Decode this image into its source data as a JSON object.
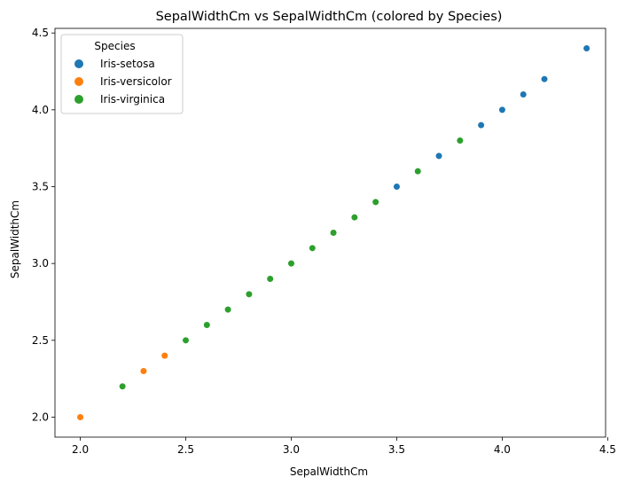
{
  "chart_data": {
    "type": "scatter",
    "title": "SepalWidthCm vs SepalWidthCm (colored by Species)",
    "xlabel": "SepalWidthCm",
    "ylabel": "SepalWidthCm",
    "xlim": [
      1.88,
      4.49
    ],
    "ylim": [
      1.87,
      4.53
    ],
    "xticks": [
      "2.0",
      "2.5",
      "3.0",
      "3.5",
      "4.0",
      "4.5"
    ],
    "yticks": [
      "2.0",
      "2.5",
      "3.0",
      "3.5",
      "4.0",
      "4.5"
    ],
    "grid": false,
    "legend": {
      "title": "Species",
      "placement": "top-left"
    },
    "series": [
      {
        "name": "Iris-setosa",
        "color": "#1f77b4",
        "x": [
          3.5,
          3.7,
          3.9,
          4.0,
          4.1,
          4.2,
          4.4
        ],
        "y": [
          3.5,
          3.7,
          3.9,
          4.0,
          4.1,
          4.2,
          4.4
        ]
      },
      {
        "name": "Iris-versicolor",
        "color": "#ff7f0e",
        "x": [
          2.0,
          2.3,
          2.4
        ],
        "y": [
          2.0,
          2.3,
          2.4
        ]
      },
      {
        "name": "Iris-virginica",
        "color": "#2ca02c",
        "x": [
          2.2,
          2.5,
          2.6,
          2.7,
          2.8,
          2.9,
          3.0,
          3.1,
          3.2,
          3.3,
          3.4,
          3.6,
          3.8
        ],
        "y": [
          2.2,
          2.5,
          2.6,
          2.7,
          2.8,
          2.9,
          3.0,
          3.1,
          3.2,
          3.3,
          3.4,
          3.6,
          3.8
        ]
      }
    ]
  }
}
